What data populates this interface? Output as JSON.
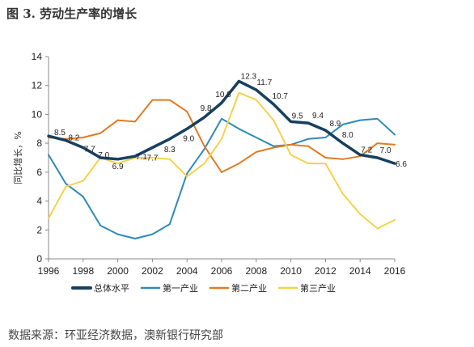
{
  "header": {
    "title": "图 3. 劳动生产率的增长"
  },
  "footer": {
    "source": "数据来源：环亚经济数据，澳新银行研究部"
  },
  "chart_data": {
    "type": "line",
    "title": "图 3. 劳动生产率的增长",
    "xlabel": "",
    "ylabel": "同比增长，%",
    "xlim": [
      1996,
      2016
    ],
    "ylim": [
      0,
      14
    ],
    "x_ticks": [
      1996,
      1998,
      2000,
      2002,
      2004,
      2006,
      2008,
      2010,
      2012,
      2014,
      2016
    ],
    "y_ticks": [
      0,
      2,
      4,
      6,
      8,
      10,
      12,
      14
    ],
    "grid": false,
    "legend_position": "bottom",
    "x": [
      1996,
      1997,
      1998,
      1999,
      2000,
      2001,
      2002,
      2003,
      2004,
      2005,
      2006,
      2007,
      2008,
      2009,
      2010,
      2011,
      2012,
      2013,
      2014,
      2015,
      2016
    ],
    "series": [
      {
        "name": "总体水平",
        "color": "#17405e",
        "width": 3.5,
        "values": [
          8.5,
          8.2,
          7.7,
          7.0,
          6.9,
          7.1,
          7.7,
          8.3,
          9.0,
          9.8,
          10.8,
          12.3,
          11.7,
          10.7,
          9.5,
          9.4,
          8.9,
          8.0,
          7.2,
          7.0,
          6.6
        ],
        "labels": [
          "8.5",
          "8.2",
          "7.7",
          "7.0",
          "6.9",
          "7.1",
          "7.7",
          "8.3",
          "9.0",
          "9.8",
          "10.8",
          "12.3",
          "11.7",
          "10.7",
          "9.5",
          "9.4",
          "8.9",
          "8.0",
          "7.2",
          "7.0",
          "6.6"
        ]
      },
      {
        "name": "第一产业",
        "color": "#2e8ab8",
        "width": 2,
        "values": [
          7.2,
          5.2,
          4.3,
          2.3,
          1.7,
          1.4,
          1.7,
          2.4,
          5.9,
          7.6,
          9.7,
          9.0,
          8.4,
          7.8,
          7.9,
          8.3,
          8.4,
          9.3,
          9.6,
          9.7,
          8.6
        ]
      },
      {
        "name": "第二产业",
        "color": "#e07b24",
        "width": 2,
        "values": [
          8.4,
          8.3,
          8.4,
          8.7,
          9.6,
          9.5,
          11.0,
          11.0,
          10.2,
          7.8,
          6.0,
          6.6,
          7.4,
          7.7,
          7.9,
          7.8,
          7.0,
          6.9,
          7.1,
          8.0,
          7.9
        ]
      },
      {
        "name": "第三产业",
        "color": "#f5d24a",
        "width": 2,
        "values": [
          2.8,
          5.0,
          5.4,
          7.0,
          6.6,
          7.0,
          7.0,
          6.9,
          5.7,
          6.6,
          8.3,
          11.5,
          11.0,
          9.6,
          7.2,
          6.6,
          6.6,
          4.5,
          3.1,
          2.1,
          2.7
        ]
      }
    ]
  }
}
